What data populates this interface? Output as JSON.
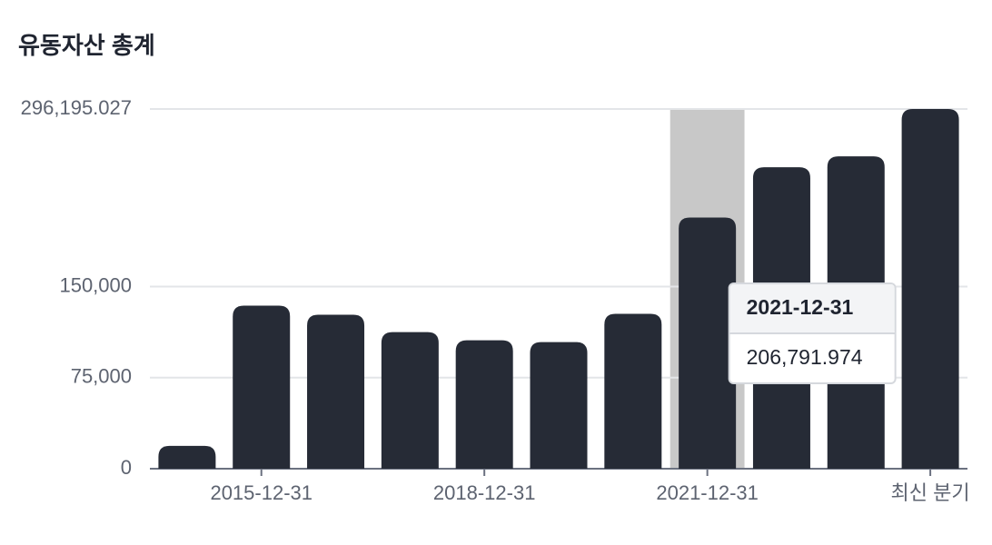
{
  "chart_data": {
    "type": "bar",
    "title": "유동자산 총계",
    "categories": [
      null,
      "2015-12-31",
      null,
      null,
      "2018-12-31",
      null,
      null,
      "2021-12-31",
      null,
      null,
      "최신 분기"
    ],
    "values": [
      18750,
      134250,
      126750,
      112500,
      105750,
      104250,
      127500,
      206791.974,
      248250,
      257250,
      296195.027
    ],
    "color": "#262b36",
    "ylim": [
      0,
      296195.027
    ],
    "yticks": [
      0,
      {
        "value": 75000,
        "label": "75,000"
      },
      {
        "value": 150000,
        "label": "150,000"
      },
      {
        "value": 296195.027,
        "label": "296,195.027"
      }
    ],
    "grid": true,
    "tooltip": {
      "title": "2021-12-31",
      "label": "206,791.974"
    }
  }
}
